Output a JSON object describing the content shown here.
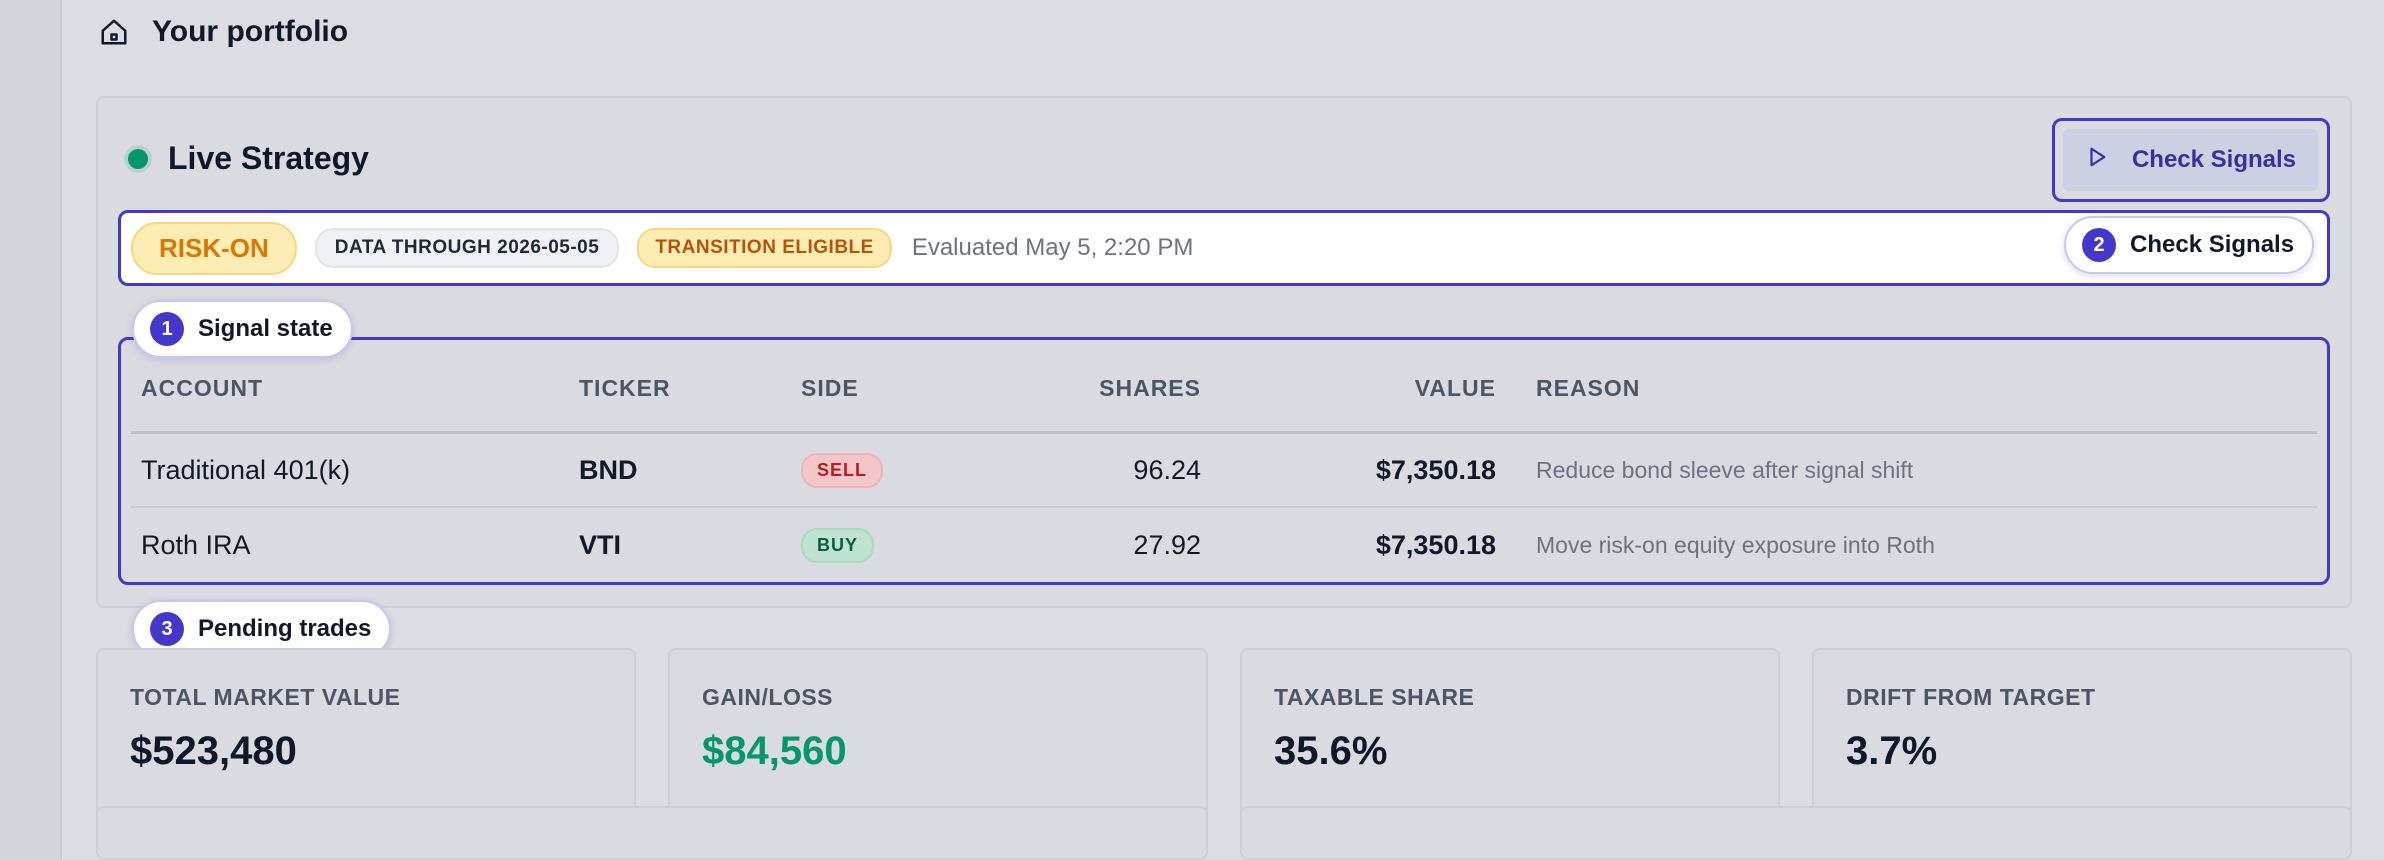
{
  "header": {
    "title": "Your portfolio",
    "icon": "home-icon"
  },
  "strategy": {
    "title": "Live Strategy",
    "status_color": "#059669",
    "check_button_label": "Check Signals"
  },
  "signal": {
    "regime": "RISK-ON",
    "data_through": "DATA THROUGH 2026-05-05",
    "transition": "TRANSITION ELIGIBLE",
    "evaluated": "Evaluated May 5, 2:20 PM"
  },
  "callouts": {
    "c1": {
      "num": "1",
      "label": "Signal state"
    },
    "c2": {
      "num": "2",
      "label": "Check Signals"
    },
    "c3": {
      "num": "3",
      "label": "Pending trades"
    }
  },
  "trades": {
    "columns": [
      "ACCOUNT",
      "TICKER",
      "SIDE",
      "SHARES",
      "VALUE",
      "REASON"
    ],
    "rows": [
      {
        "account": "Traditional 401(k)",
        "ticker": "BND",
        "side": "SELL",
        "shares": "96.24",
        "value": "$7,350.18",
        "reason": "Reduce bond sleeve after signal shift"
      },
      {
        "account": "Roth IRA",
        "ticker": "VTI",
        "side": "BUY",
        "shares": "27.92",
        "value": "$7,350.18",
        "reason": "Move risk-on equity exposure into Roth"
      }
    ]
  },
  "metrics": [
    {
      "label": "TOTAL MARKET VALUE",
      "value": "$523,480"
    },
    {
      "label": "GAIN/LOSS",
      "value": "$84,560"
    },
    {
      "label": "TAXABLE SHARE",
      "value": "35.6%"
    },
    {
      "label": "DRIFT FROM TARGET",
      "value": "3.7%"
    }
  ],
  "colors": {
    "accent": "#4338ca",
    "gain": "#059669",
    "risk_on": "#d97706"
  }
}
